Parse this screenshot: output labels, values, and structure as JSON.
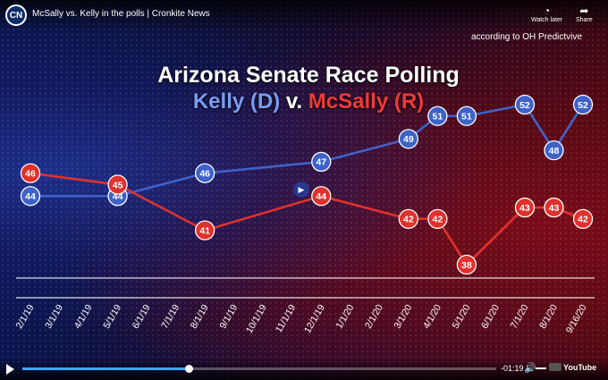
{
  "header": {
    "logo_text": "CN",
    "video_title": "McSally vs. Kelly in the polls | Cronkite News",
    "watch_later_label": "Watch later",
    "share_label": "Share"
  },
  "overlay": {
    "source": "according to OH Predictvive",
    "title": "Arizona Senate Race Polling",
    "subtitle_kelly": "Kelly (D)",
    "subtitle_vs": " v. ",
    "subtitle_mcsally": "McSally (R)"
  },
  "player": {
    "time_remaining": "-01:19",
    "brand": "YouTube",
    "progress": 0.35,
    "volume": 1.0
  },
  "colors": {
    "kelly": "#3f62c9",
    "mcsally": "#e0312d"
  },
  "icons": [
    "clock-icon",
    "share-icon",
    "play-icon",
    "volume-icon",
    "youtube-logo"
  ],
  "chart_data": {
    "type": "line",
    "title": "Arizona Senate Race Polling",
    "categories": [
      "2/1/19",
      "3/1/19",
      "4/1/19",
      "5/1/19",
      "6/1/19",
      "7/1/19",
      "8/1/19",
      "9/1/19",
      "10/1/19",
      "11/1/19",
      "12/1/19",
      "1/1/20",
      "2/1/20",
      "3/1/20",
      "4/1/20",
      "5/1/20",
      "6/1/20",
      "7/1/20",
      "8/1/20",
      "9/16/20"
    ],
    "series": [
      {
        "name": "Kelly (D)",
        "values": [
          44,
          null,
          null,
          44,
          null,
          null,
          46,
          null,
          null,
          null,
          47,
          null,
          null,
          49,
          51,
          51,
          null,
          52,
          48,
          52
        ]
      },
      {
        "name": "McSally (R)",
        "values": [
          46,
          null,
          null,
          45,
          null,
          null,
          41,
          null,
          null,
          null,
          44,
          null,
          null,
          42,
          42,
          38,
          null,
          43,
          43,
          42
        ]
      }
    ],
    "grid": false,
    "legend": "none"
  }
}
